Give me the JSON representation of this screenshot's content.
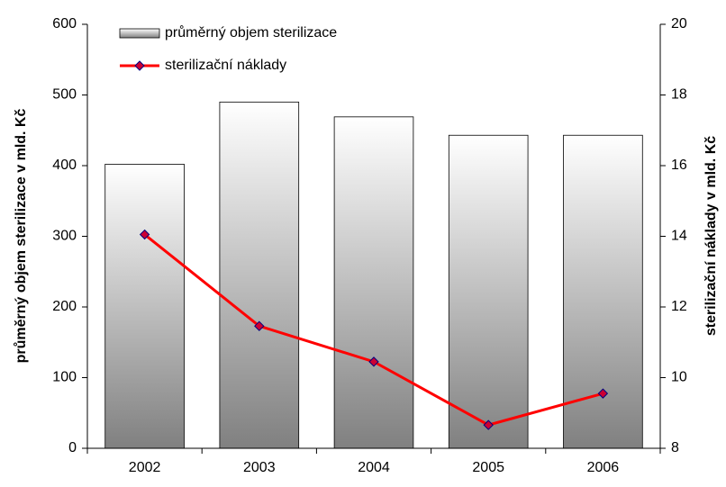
{
  "chart_data": {
    "type": "bar_line",
    "categories": [
      "2002",
      "2003",
      "2004",
      "2005",
      "2006"
    ],
    "series": [
      {
        "name": "průměrný objem sterilizace",
        "type": "bar",
        "color": "#808080",
        "values": [
          402,
          490,
          469,
          443,
          443
        ]
      },
      {
        "name": "sterilizační náklady",
        "type": "line",
        "axis": "y2",
        "color": "#ff0000",
        "marker_color": "#cc0033",
        "values": [
          14.05,
          11.46,
          10.45,
          8.66,
          9.55
        ]
      }
    ],
    "ylabel": "průměrný objem sterilizace v mld. Kč",
    "y2label": "sterilizační náklady v mld. Kč",
    "ylim": [
      0,
      600
    ],
    "yticks": [
      0,
      100,
      200,
      300,
      400,
      500,
      600
    ],
    "y2lim": [
      8,
      20
    ],
    "y2ticks": [
      8,
      10,
      12,
      14,
      16,
      18,
      20
    ],
    "legend": "top-left",
    "grid": false
  }
}
